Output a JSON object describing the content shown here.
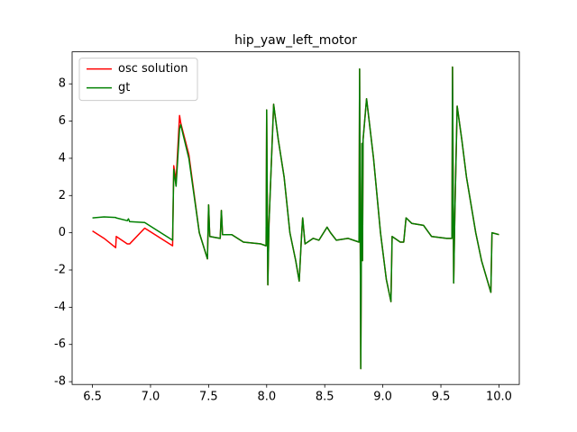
{
  "chart_data": {
    "type": "line",
    "title": "hip_yaw_left_motor",
    "x": [
      6.5,
      6.6,
      6.7,
      6.705,
      6.8,
      6.81,
      6.82,
      6.95,
      7.19,
      7.2,
      7.22,
      7.25,
      7.26,
      7.33,
      7.42,
      7.49,
      7.5,
      7.51,
      7.6,
      7.61,
      7.62,
      7.7,
      7.8,
      7.95,
      7.995,
      8.0,
      8.01,
      8.02,
      8.06,
      8.1,
      8.15,
      8.2,
      8.25,
      8.28,
      8.3,
      8.31,
      8.33,
      8.4,
      8.45,
      8.52,
      8.55,
      8.6,
      8.7,
      8.795,
      8.8,
      8.81,
      8.82,
      8.825,
      8.83,
      8.86,
      8.92,
      8.98,
      9.03,
      9.07,
      9.08,
      9.15,
      9.18,
      9.2,
      9.25,
      9.35,
      9.42,
      9.55,
      9.595,
      9.6,
      9.61,
      9.62,
      9.64,
      9.68,
      9.72,
      9.8,
      9.85,
      9.93,
      9.94,
      10.0
    ],
    "series": [
      {
        "name": "osc solution",
        "color": "#ff0000",
        "values": [
          0.1,
          -0.3,
          -0.8,
          -0.2,
          -0.6,
          -0.6,
          -0.6,
          0.25,
          -0.7,
          3.6,
          2.8,
          6.3,
          5.9,
          4.2,
          0,
          -1.4,
          1.5,
          -0.2,
          -0.3,
          1.2,
          -0.1,
          -0.1,
          -0.5,
          -0.6,
          -0.7,
          6.6,
          -2.8,
          0.5,
          6.9,
          5,
          3,
          0,
          -1.5,
          -2.6,
          -0.2,
          0.8,
          -0.6,
          -0.3,
          -0.4,
          0.3,
          0,
          -0.4,
          -0.3,
          -0.5,
          8.8,
          -7.3,
          4.8,
          -1.5,
          5,
          7.2,
          4,
          0,
          -2.5,
          -3.7,
          -0.2,
          -0.5,
          -0.5,
          0.8,
          0.5,
          0.4,
          -0.2,
          -0.3,
          -0.3,
          8.9,
          -2.7,
          1,
          6.8,
          5,
          3,
          0,
          -1.5,
          -3.2,
          0,
          -0.1
        ]
      },
      {
        "name": "gt",
        "color": "#008000",
        "values": [
          0.8,
          0.85,
          0.82,
          0.8,
          0.65,
          0.75,
          0.6,
          0.55,
          -0.4,
          3.4,
          2.5,
          5.6,
          5.8,
          4,
          0,
          -1.4,
          1.5,
          -0.2,
          -0.3,
          1.2,
          -0.1,
          -0.1,
          -0.5,
          -0.6,
          -0.7,
          6.6,
          -2.8,
          0.5,
          6.9,
          5,
          3,
          0,
          -1.5,
          -2.6,
          -0.2,
          0.8,
          -0.6,
          -0.3,
          -0.4,
          0.3,
          0,
          -0.4,
          -0.3,
          -0.5,
          8.8,
          -7.3,
          4.8,
          -1.5,
          5,
          7.2,
          4,
          0,
          -2.5,
          -3.7,
          -0.2,
          -0.5,
          -0.5,
          0.8,
          0.5,
          0.4,
          -0.2,
          -0.3,
          -0.3,
          8.9,
          -2.7,
          1,
          6.8,
          5,
          3,
          0,
          -1.5,
          -3.2,
          0,
          -0.1
        ]
      }
    ],
    "xlim": [
      6.325,
      10.175
    ],
    "ylim": [
      -8.15,
      9.72
    ],
    "xticks": [
      6.5,
      {
        "value": 7,
        "label": "7.0"
      },
      7.5,
      {
        "value": 8,
        "label": "8.0"
      },
      8.5,
      {
        "value": 9,
        "label": "9.0"
      },
      9.5,
      {
        "value": 10,
        "label": "10.0"
      }
    ],
    "yticks": [
      -8,
      -6,
      -4,
      -2,
      0,
      2,
      4,
      6,
      8
    ],
    "legend": "upper left",
    "grid": false
  }
}
